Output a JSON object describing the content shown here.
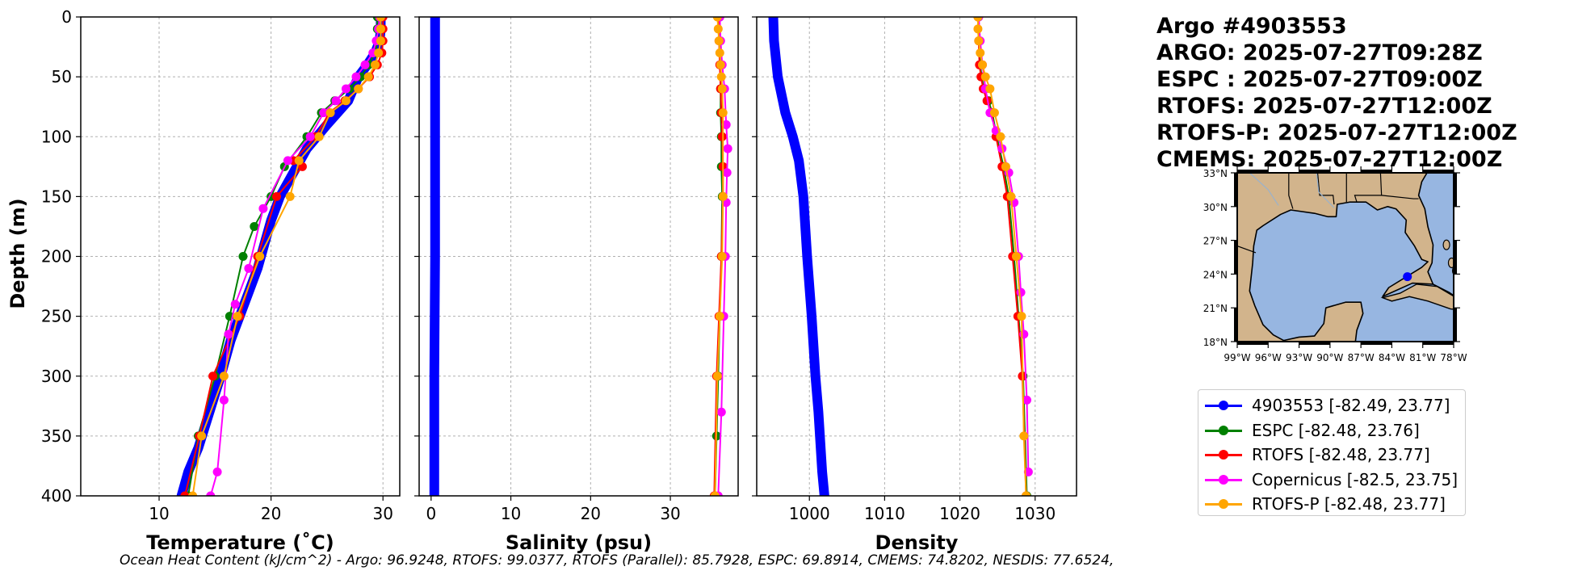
{
  "header": {
    "lines": [
      "Argo #4903553",
      "ARGO: 2025-07-27T09:28Z",
      "ESPC : 2025-07-27T09:00Z",
      "RTOFS: 2025-07-27T12:00Z",
      "RTOFS-P: 2025-07-27T12:00Z",
      "CMEMS: 2025-07-27T12:00Z"
    ]
  },
  "footer": "Ocean Heat Content (kJ/cm^2) - Argo: 96.9248,  RTOFS: 99.0377,  RTOFS (Parallel): 85.7928,  ESPC: 69.8914,  CMEMS: 74.8202,  NESDIS: 77.6524,",
  "legend": [
    {
      "label": "4903553 [-82.49, 23.77]",
      "color": "#0000ff"
    },
    {
      "label": "ESPC [-82.48, 23.76]",
      "color": "#008000"
    },
    {
      "label": "RTOFS [-82.48, 23.77]",
      "color": "#ff0000"
    },
    {
      "label": "Copernicus [-82.5, 23.75]",
      "color": "#ff00ff"
    },
    {
      "label": "RTOFS-P [-82.48, 23.77]",
      "color": "#ffa500"
    }
  ],
  "map": {
    "lat_ticks": [
      "33°N",
      "30°N",
      "27°N",
      "24°N",
      "21°N",
      "18°N"
    ],
    "lon_ticks": [
      "99°W",
      "96°W",
      "93°W",
      "90°W",
      "87°W",
      "84°W",
      "81°W",
      "78°W"
    ],
    "lat_range": [
      18,
      33
    ],
    "lon_range": [
      -99,
      -78
    ],
    "float_point": [
      -82.49,
      23.77
    ],
    "land_color": "#d2b48c",
    "ocean_color": "#97b6e1",
    "marker_color": "#0000ff"
  },
  "chart_data": [
    {
      "type": "line",
      "xlabel": "Temperature (˚C)",
      "ylabel": "Depth (m)",
      "xlim": [
        3,
        31.5
      ],
      "ylim": [
        400,
        0
      ],
      "xticks": [
        10,
        20,
        30
      ],
      "yticks": [
        0,
        50,
        100,
        150,
        200,
        250,
        300,
        350,
        400
      ],
      "grid": true,
      "series": [
        {
          "name": "4903553",
          "color": "#0000ff",
          "markers": false,
          "thick": true,
          "x": [
            29.8,
            29.8,
            29.7,
            29.3,
            28.6,
            27.8,
            26.9,
            25.0,
            23.2,
            22.0,
            20.8,
            20.0,
            19.4,
            18.8,
            18.0,
            17.2,
            16.4,
            15.5,
            14.5,
            13.5,
            12.6,
            12.0
          ],
          "y": [
            0,
            10,
            20,
            30,
            40,
            50,
            70,
            90,
            110,
            130,
            150,
            170,
            190,
            210,
            230,
            250,
            270,
            300,
            330,
            360,
            380,
            400
          ]
        },
        {
          "name": "ESPC",
          "color": "#008000",
          "x": [
            29.5,
            29.5,
            29.5,
            29.3,
            28.7,
            28.0,
            27.0,
            25.7,
            24.5,
            23.2,
            21.2,
            20.0,
            18.5,
            17.5,
            16.3,
            15.0,
            13.5,
            12.6
          ],
          "y": [
            0,
            10,
            20,
            30,
            40,
            50,
            60,
            70,
            80,
            100,
            125,
            150,
            175,
            200,
            250,
            300,
            350,
            400
          ]
        },
        {
          "name": "RTOFS",
          "color": "#ff0000",
          "x": [
            30.0,
            30.0,
            30.0,
            29.9,
            29.5,
            28.8,
            27.8,
            26.6,
            25.2,
            24.0,
            22.0,
            22.8,
            20.5,
            18.8,
            17.2,
            14.8,
            13.6,
            12.3
          ],
          "y": [
            0,
            10,
            20,
            30,
            40,
            50,
            60,
            70,
            80,
            100,
            120,
            125,
            150,
            200,
            250,
            300,
            350,
            400
          ]
        },
        {
          "name": "Copernicus",
          "color": "#ff00ff",
          "x": [
            29.7,
            29.6,
            29.4,
            29.1,
            28.4,
            27.6,
            26.7,
            25.8,
            24.7,
            23.5,
            21.5,
            19.3,
            18.0,
            16.8,
            16.2,
            15.8,
            15.2,
            14.6
          ],
          "y": [
            0,
            10,
            20,
            30,
            40,
            50,
            60,
            70,
            80,
            100,
            120,
            160,
            210,
            240,
            265,
            320,
            380,
            400
          ]
        },
        {
          "name": "RTOFS-P",
          "color": "#ffa500",
          "x": [
            29.8,
            29.8,
            29.8,
            29.6,
            29.3,
            28.7,
            27.8,
            26.7,
            25.3,
            24.3,
            22.5,
            21.7,
            19.0,
            17.0,
            15.8,
            13.8,
            13.0
          ],
          "y": [
            0,
            10,
            20,
            30,
            40,
            50,
            60,
            70,
            80,
            100,
            120,
            150,
            200,
            250,
            300,
            350,
            400
          ]
        }
      ]
    },
    {
      "type": "line",
      "xlabel": "Salinity (psu)",
      "ylabel": "",
      "xlim": [
        -1.5,
        38.5
      ],
      "ylim": [
        400,
        0
      ],
      "xticks": [
        0,
        10,
        20,
        30
      ],
      "yticks": [
        0,
        50,
        100,
        150,
        200,
        250,
        300,
        350,
        400
      ],
      "grid": true,
      "series": [
        {
          "name": "4903553",
          "color": "#0000ff",
          "markers": false,
          "thick": true,
          "x": [
            0.5,
            0.5,
            0.5,
            0.4,
            0.4,
            0.4
          ],
          "y": [
            0,
            100,
            200,
            300,
            330,
            400
          ]
        },
        {
          "name": "ESPC",
          "color": "#008000",
          "x": [
            36.2,
            36.2,
            36.3,
            36.3,
            36.3,
            36.4,
            36.4,
            36.5,
            36.4,
            36.2,
            36.0,
            35.8,
            35.6
          ],
          "y": [
            0,
            20,
            40,
            60,
            80,
            100,
            125,
            150,
            200,
            250,
            300,
            350,
            400
          ]
        },
        {
          "name": "RTOFS",
          "color": "#ff0000",
          "x": [
            36.0,
            36.1,
            36.2,
            36.3,
            36.4,
            36.5,
            36.6,
            36.6,
            36.4,
            36.1,
            35.8,
            35.5
          ],
          "y": [
            0,
            20,
            40,
            60,
            80,
            100,
            125,
            150,
            200,
            250,
            300,
            400
          ]
        },
        {
          "name": "Copernicus",
          "color": "#ff00ff",
          "x": [
            36.2,
            36.3,
            36.5,
            36.8,
            37.0,
            37.2,
            37.1,
            37.0,
            36.9,
            36.7,
            36.4,
            36.0
          ],
          "y": [
            0,
            20,
            40,
            60,
            90,
            110,
            130,
            155,
            200,
            250,
            330,
            400
          ]
        },
        {
          "name": "RTOFS-P",
          "color": "#ffa500",
          "x": [
            35.9,
            36.0,
            36.1,
            36.2,
            36.3,
            36.4,
            36.5,
            36.6,
            36.6,
            36.5,
            36.2,
            35.9,
            35.6
          ],
          "y": [
            0,
            10,
            20,
            30,
            40,
            50,
            60,
            80,
            150,
            200,
            250,
            300,
            400
          ]
        }
      ]
    },
    {
      "type": "line",
      "xlabel": "Density",
      "ylabel": "",
      "xlim": [
        993,
        1035.5
      ],
      "ylim": [
        400,
        0
      ],
      "xticks": [
        1000,
        1010,
        1020,
        1030
      ],
      "yticks": [
        0,
        50,
        100,
        150,
        200,
        250,
        300,
        350,
        400
      ],
      "grid": true,
      "series": [
        {
          "name": "4903553",
          "color": "#0000ff",
          "markers": false,
          "thick": true,
          "x": [
            995.2,
            995.3,
            995.8,
            996.8,
            997.8,
            998.6,
            999.2,
            999.7,
            1000.3,
            1000.8,
            1001.2,
            1001.7,
            1002.0
          ],
          "y": [
            0,
            20,
            50,
            80,
            100,
            120,
            150,
            200,
            250,
            300,
            330,
            380,
            400
          ]
        },
        {
          "name": "ESPC",
          "color": "#008000",
          "x": [
            1022.5,
            1022.6,
            1022.7,
            1022.9,
            1023.2,
            1023.8,
            1024.3,
            1024.9,
            1025.8,
            1026.5,
            1027.2,
            1027.8,
            1028.4,
            1028.9
          ],
          "y": [
            0,
            20,
            40,
            50,
            60,
            70,
            80,
            100,
            125,
            150,
            200,
            250,
            300,
            400
          ]
        },
        {
          "name": "RTOFS",
          "color": "#ff0000",
          "x": [
            1022.4,
            1022.5,
            1022.6,
            1022.8,
            1023.1,
            1023.6,
            1024.2,
            1024.8,
            1025.6,
            1026.3,
            1027.0,
            1027.7,
            1028.3,
            1028.8
          ],
          "y": [
            0,
            20,
            40,
            50,
            60,
            70,
            80,
            100,
            125,
            150,
            200,
            250,
            300,
            400
          ]
        },
        {
          "name": "Copernicus",
          "color": "#ff00ff",
          "x": [
            1022.5,
            1022.7,
            1023.0,
            1023.4,
            1024.0,
            1024.8,
            1025.6,
            1026.5,
            1027.2,
            1027.8,
            1028.1,
            1028.5,
            1028.9,
            1029.1
          ],
          "y": [
            0,
            20,
            40,
            60,
            80,
            95,
            110,
            130,
            155,
            200,
            230,
            265,
            320,
            380
          ]
        },
        {
          "name": "RTOFS-P",
          "color": "#ffa500",
          "x": [
            1022.4,
            1022.4,
            1022.5,
            1022.7,
            1023.0,
            1023.4,
            1024.0,
            1024.6,
            1025.4,
            1026.1,
            1026.8,
            1027.5,
            1028.2,
            1028.5,
            1028.8
          ],
          "y": [
            0,
            10,
            20,
            30,
            40,
            50,
            60,
            80,
            100,
            125,
            150,
            200,
            250,
            350,
            400
          ]
        }
      ]
    }
  ]
}
